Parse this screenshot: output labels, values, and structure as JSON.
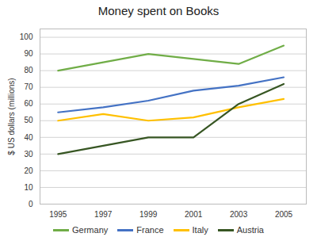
{
  "chart_data": {
    "type": "line",
    "title": "Money spent on Books",
    "ylabel": "$ US dollars (millions)",
    "x": [
      1995,
      1997,
      1999,
      2001,
      2003,
      2005
    ],
    "series": [
      {
        "name": "Germany",
        "color": "#70ad47",
        "values": [
          80,
          85,
          90,
          87,
          84,
          95
        ]
      },
      {
        "name": "France",
        "color": "#4472c4",
        "values": [
          55,
          58,
          62,
          68,
          71,
          76
        ]
      },
      {
        "name": "Italy",
        "color": "#ffc000",
        "values": [
          50,
          54,
          50,
          52,
          58,
          63
        ]
      },
      {
        "name": "Austria",
        "color": "#375623",
        "values": [
          30,
          35,
          40,
          40,
          60,
          72
        ]
      }
    ],
    "xlim": [
      1994.2,
      2006.0
    ],
    "xticks": [
      1995,
      1997,
      1999,
      2001,
      2003,
      2005
    ],
    "ylim": [
      0,
      105
    ],
    "yticks": [
      0,
      10,
      20,
      30,
      40,
      50,
      60,
      70,
      80,
      90,
      100
    ],
    "grid": true,
    "legend": "bottom"
  }
}
